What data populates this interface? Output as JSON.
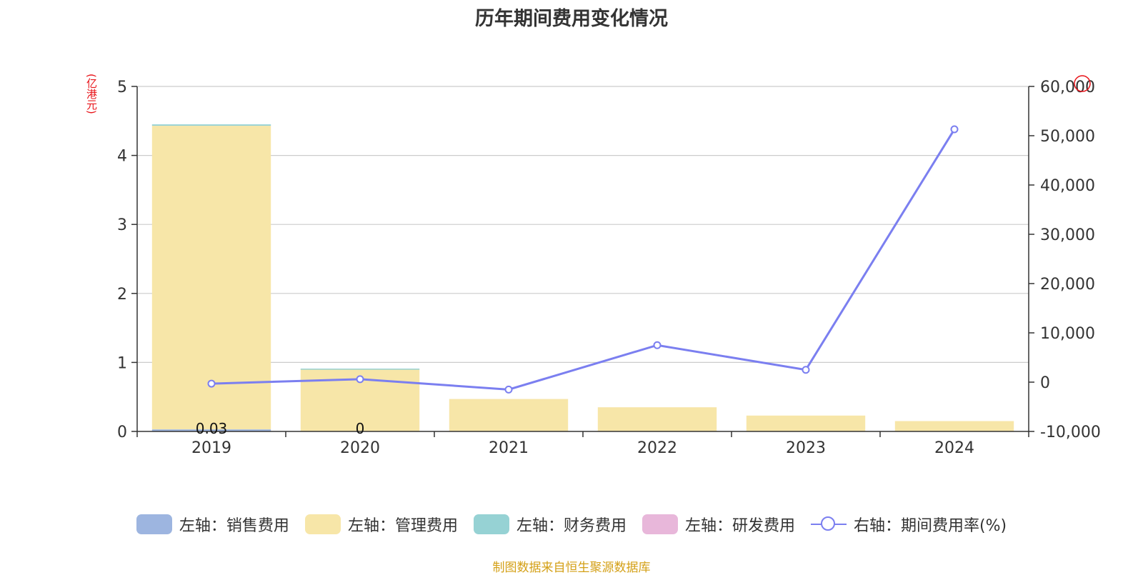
{
  "chart_data": {
    "type": "bar",
    "title": "历年期间费用变化情况",
    "left_unit": "(亿港元)",
    "categories": [
      "2019",
      "2020",
      "2021",
      "2022",
      "2023",
      "2024"
    ],
    "left_axis": {
      "ylim": [
        0,
        5
      ],
      "ticks": [
        "0",
        "1",
        "2",
        "3",
        "4",
        "5"
      ]
    },
    "right_axis": {
      "ylim": [
        -10000,
        60000
      ],
      "ticks": [
        "-10,000",
        "0",
        "10,000",
        "20,000",
        "30,000",
        "40,000",
        "50,000",
        "60,000"
      ]
    },
    "stacked": true,
    "series": [
      {
        "name": "左轴：销售费用",
        "axis": "left",
        "type": "bar",
        "color": "#9db5e0",
        "values": [
          0.03,
          0,
          0,
          0,
          0,
          0
        ]
      },
      {
        "name": "左轴：管理费用",
        "axis": "left",
        "type": "bar",
        "color": "#f7e6a8",
        "values": [
          4.4,
          0.9,
          0.47,
          0.35,
          0.23,
          0.15
        ]
      },
      {
        "name": "左轴：财务费用",
        "axis": "left",
        "type": "bar",
        "color": "#96d2d4",
        "values": [
          0.02,
          0.01,
          0,
          0,
          0,
          0
        ]
      },
      {
        "name": "左轴：研发费用",
        "axis": "left",
        "type": "bar",
        "color": "#e8b7da",
        "values": [
          0,
          0,
          0,
          0,
          0,
          0
        ]
      },
      {
        "name": "右轴：期间费用率(%)",
        "axis": "right",
        "type": "line",
        "color": "#7b7ff0",
        "values": [
          -300,
          600,
          -1500,
          7500,
          2500,
          51300
        ]
      }
    ],
    "bar_labels": [
      "0.03",
      "0"
    ],
    "grid": true,
    "legend_position": "bottom"
  },
  "source": "制图数据来自恒生聚源数据库"
}
